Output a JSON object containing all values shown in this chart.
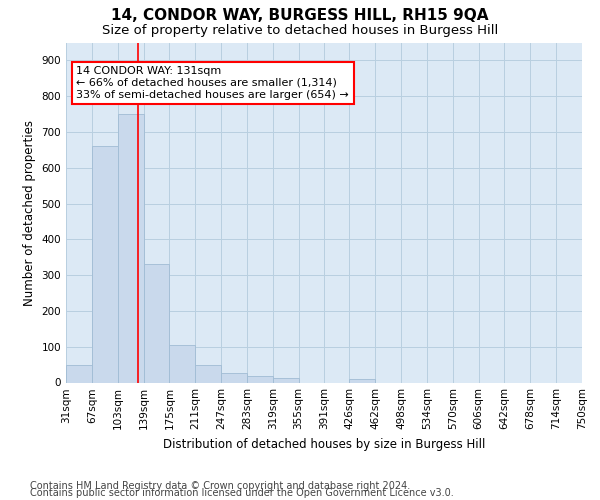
{
  "title": "14, CONDOR WAY, BURGESS HILL, RH15 9QA",
  "subtitle": "Size of property relative to detached houses in Burgess Hill",
  "xlabel": "Distribution of detached houses by size in Burgess Hill",
  "ylabel": "Number of detached properties",
  "footer_line1": "Contains HM Land Registry data © Crown copyright and database right 2024.",
  "footer_line2": "Contains public sector information licensed under the Open Government Licence v3.0.",
  "bar_edges": [
    31,
    67,
    103,
    139,
    175,
    211,
    247,
    283,
    319,
    355,
    391,
    426,
    462,
    498,
    534,
    570,
    606,
    642,
    678,
    714,
    750
  ],
  "bar_heights": [
    50,
    660,
    750,
    330,
    105,
    50,
    27,
    17,
    13,
    0,
    0,
    10,
    0,
    0,
    0,
    0,
    0,
    0,
    0,
    0
  ],
  "bar_color": "#c9d9ec",
  "bar_edge_color": "#a0bcd4",
  "red_line_x": 131,
  "annotation_line1": "14 CONDOR WAY: 131sqm",
  "annotation_line2": "← 66% of detached houses are smaller (1,314)",
  "annotation_line3": "33% of semi-detached houses are larger (654) →",
  "ylim": [
    0,
    950
  ],
  "yticks": [
    0,
    100,
    200,
    300,
    400,
    500,
    600,
    700,
    800,
    900
  ],
  "grid_color": "#b8cfe0",
  "background_color": "#dce9f5",
  "title_fontsize": 11,
  "subtitle_fontsize": 9.5,
  "axis_fontsize": 8.5,
  "tick_fontsize": 7.5,
  "footer_fontsize": 7
}
